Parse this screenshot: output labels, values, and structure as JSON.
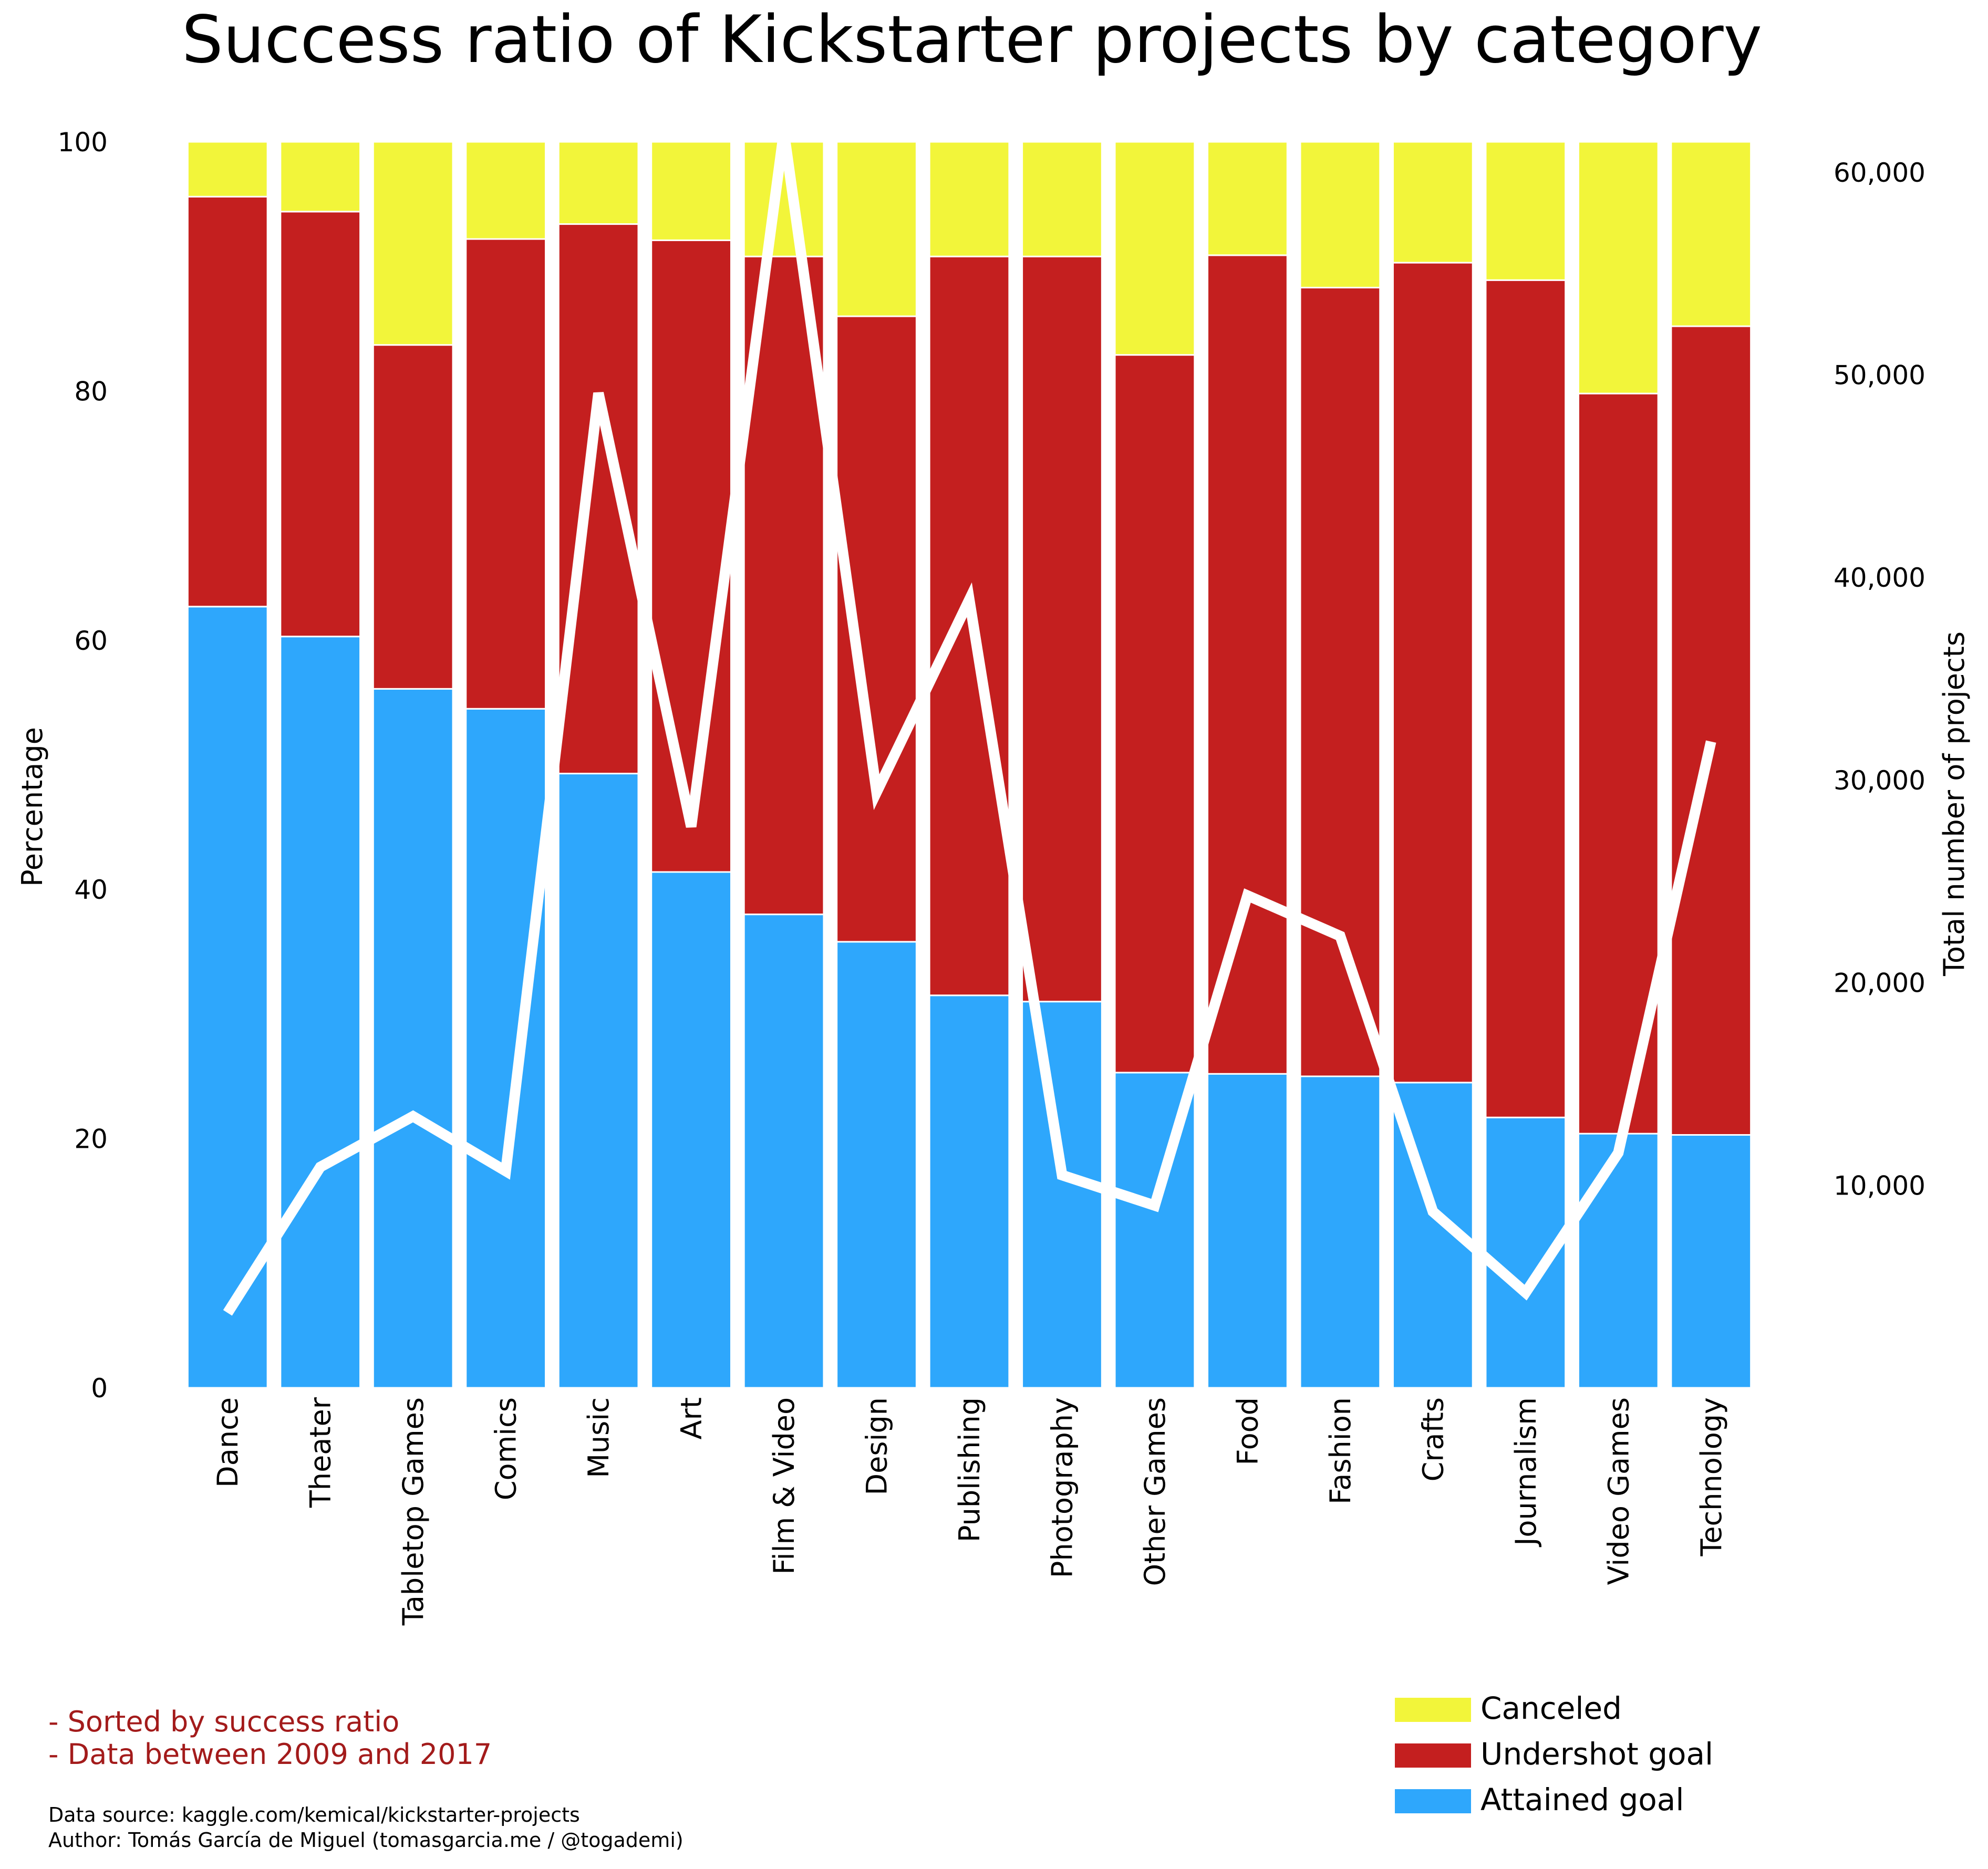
{
  "chart_data": {
    "type": "bar",
    "stacked": true,
    "title": "Success ratio of Kickstarter projects by category",
    "ylabel": "Percentage",
    "y2label": "Total number of projects",
    "ylim": [
      0,
      100
    ],
    "y2lim": [
      0,
      61500
    ],
    "yticks": [
      0,
      20,
      40,
      60,
      80,
      100
    ],
    "y2ticks": [
      10000,
      20000,
      30000,
      40000,
      50000,
      60000
    ],
    "y2ticklabels": [
      "10,000",
      "20,000",
      "30,000",
      "40,000",
      "50,000",
      "60,000"
    ],
    "grid": false,
    "legend_position": "bottom-right",
    "categories": [
      "Dance",
      "Theater",
      "Tabletop Games",
      "Comics",
      "Music",
      "Art",
      "Film & Video",
      "Design",
      "Publishing",
      "Photography",
      "Other Games",
      "Food",
      "Fashion",
      "Crafts",
      "Journalism",
      "Video Games",
      "Technology"
    ],
    "series": [
      {
        "name": "Attained goal",
        "color": "#2ea7fc",
        "values": [
          62.7,
          60.3,
          56.1,
          54.5,
          49.3,
          41.4,
          38.0,
          35.8,
          31.5,
          31.0,
          25.3,
          25.2,
          25.0,
          24.5,
          21.7,
          20.4,
          20.3
        ]
      },
      {
        "name": "Undershot goal",
        "color": "#c41f1f",
        "values": [
          32.9,
          34.1,
          27.6,
          37.7,
          44.1,
          50.7,
          52.8,
          50.2,
          59.3,
          59.8,
          57.6,
          65.7,
          63.3,
          65.8,
          67.2,
          59.4,
          64.9
        ]
      },
      {
        "name": "Canceled",
        "color": "#f2f53a",
        "values": [
          4.4,
          5.6,
          16.3,
          7.8,
          6.6,
          7.9,
          9.2,
          14.0,
          9.2,
          9.2,
          17.1,
          9.1,
          11.7,
          9.7,
          11.1,
          20.2,
          14.8
        ]
      }
    ],
    "line": {
      "name": "Total number of projects",
      "color": "#ffffff",
      "values": [
        3700,
        10900,
        13400,
        10700,
        49100,
        27700,
        62000,
        29400,
        38900,
        10500,
        9000,
        24300,
        22300,
        8700,
        4700,
        11600,
        31900
      ]
    }
  },
  "notes": [
    "- Sorted by success ratio",
    "- Data between 2009 and 2017"
  ],
  "credits": [
    "Data source: kaggle.com/kemical/kickstarter-projects",
    "Author: Tomás García de Miguel (tomasgarcia.me / @togademi)"
  ],
  "legend_order": [
    "Canceled",
    "Undershot goal",
    "Attained goal"
  ],
  "colors": {
    "note": "#a31b1b",
    "text": "#000000",
    "background": "#ffffff"
  }
}
